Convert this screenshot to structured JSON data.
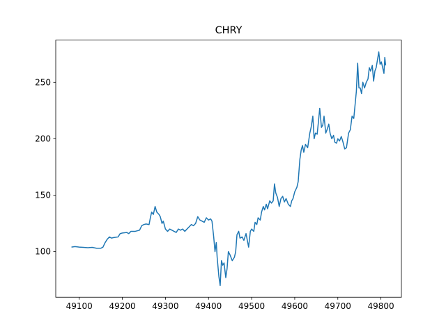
{
  "chart_data": {
    "type": "line",
    "title": "CHRY",
    "x": [
      49082,
      49090,
      49100,
      49110,
      49120,
      49130,
      49140,
      49150,
      49155,
      49160,
      49165,
      49170,
      49175,
      49180,
      49190,
      49195,
      49200,
      49210,
      49215,
      49220,
      49230,
      49240,
      49245,
      49250,
      49255,
      49262,
      49265,
      49268,
      49272,
      49276,
      49280,
      49285,
      49288,
      49292,
      49295,
      49300,
      49305,
      49310,
      49315,
      49320,
      49325,
      49330,
      49335,
      49340,
      49345,
      49350,
      49355,
      49360,
      49365,
      49370,
      49375,
      49380,
      49385,
      49390,
      49395,
      49400,
      49405,
      49408,
      49410,
      49412,
      49415,
      49418,
      49420,
      49424,
      49427,
      49430,
      49433,
      49436,
      49440,
      49443,
      49446,
      49450,
      49455,
      49460,
      49463,
      49466,
      49470,
      49473,
      49478,
      49482,
      49487,
      49490,
      49493,
      49497,
      49500,
      49505,
      49508,
      49512,
      49515,
      49520,
      49523,
      49527,
      49530,
      49534,
      49537,
      49542,
      49546,
      49550,
      49553,
      49556,
      49560,
      49564,
      49568,
      49572,
      49576,
      49580,
      49585,
      49590,
      49593,
      49596,
      49600,
      49605,
      49608,
      49612,
      49615,
      49618,
      49621,
      49625,
      49630,
      49635,
      49638,
      49642,
      49645,
      49648,
      49652,
      49655,
      49658,
      49662,
      49665,
      49668,
      49672,
      49675,
      49679,
      49682,
      49686,
      49690,
      49693,
      49697,
      49700,
      49704,
      49708,
      49712,
      49716,
      49720,
      49725,
      49729,
      49733,
      49737,
      49740,
      49743,
      49746,
      49749,
      49752,
      49755,
      49758,
      49762,
      49766,
      49770,
      49773,
      49776,
      49780,
      49783,
      49786,
      49789,
      49792,
      49795,
      49798,
      49801,
      49804,
      49807,
      49809,
      49811
    ],
    "series": [
      {
        "color": "#1f77b4",
        "values": [
          104,
          104.5,
          104,
          103.8,
          103.5,
          103.8,
          103,
          103,
          104,
          108,
          111,
          113,
          112,
          112.5,
          113,
          116,
          116.5,
          117,
          116,
          118,
          118,
          119,
          123,
          124,
          124.5,
          124,
          130,
          135,
          133,
          140,
          135,
          133,
          131,
          125,
          127,
          120,
          118,
          120,
          119,
          118,
          117,
          120,
          119,
          120,
          118,
          120,
          122,
          124,
          123,
          125,
          131,
          128,
          127,
          126,
          130,
          128,
          129,
          127,
          120,
          113,
          100,
          108,
          95,
          78,
          70,
          92,
          88,
          90,
          77,
          85,
          100,
          97,
          92,
          95,
          100,
          115,
          118,
          112,
          113,
          110,
          116,
          110,
          104,
          118,
          120,
          118,
          126,
          124,
          130,
          128,
          135,
          140,
          137,
          142,
          138,
          145,
          143,
          145,
          160,
          152,
          148,
          140,
          147,
          149,
          144,
          147,
          142,
          140,
          145,
          147,
          153,
          157,
          162,
          182,
          190,
          194,
          188,
          195,
          192,
          205,
          210,
          220,
          200,
          205,
          204,
          215,
          227,
          210,
          212,
          220,
          205,
          208,
          213,
          205,
          200,
          203,
          197,
          196,
          200,
          198,
          202,
          197,
          191,
          192,
          205,
          208,
          220,
          218,
          230,
          242,
          267,
          245,
          245,
          240,
          250,
          245,
          250,
          253,
          263,
          260,
          265,
          251,
          260,
          263,
          270,
          277,
          266,
          268,
          263,
          258,
          272,
          265
        ]
      }
    ],
    "xlim": [
      49045.5,
      49847.5
    ],
    "xticks": [
      49100,
      49200,
      49300,
      49400,
      49500,
      49600,
      49700,
      49800
    ],
    "ylim": [
      59.6,
      287.4
    ],
    "yticks": [
      100,
      150,
      200,
      250
    ]
  }
}
